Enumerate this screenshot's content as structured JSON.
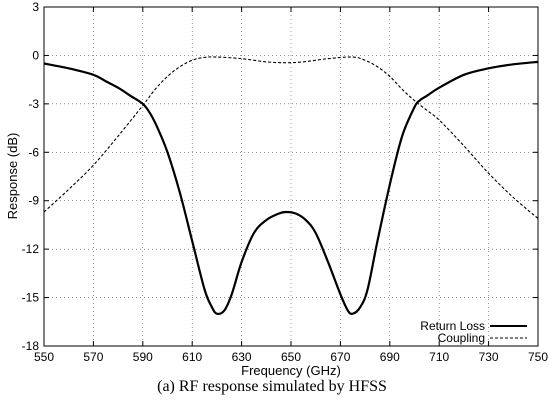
{
  "chart_data": {
    "type": "line",
    "xlabel": "Frequency (GHz)",
    "ylabel": "Response (dB)",
    "xlim": [
      550,
      750
    ],
    "ylim": [
      -18,
      3
    ],
    "xticks": [
      550,
      570,
      590,
      610,
      630,
      650,
      670,
      690,
      710,
      730,
      750
    ],
    "yticks": [
      3,
      0,
      -3,
      -6,
      -9,
      -12,
      -15,
      -18
    ],
    "grid": true,
    "legend_position": "bottom-right",
    "series": [
      {
        "name": "Return Loss",
        "style": "solid",
        "x": [
          550,
          560,
          570,
          575,
          580,
          585,
          590,
          593,
          596,
          600,
          605,
          610,
          615,
          618,
          620,
          623,
          626,
          630,
          635,
          640,
          645,
          648,
          652,
          656,
          660,
          665,
          670,
          673,
          675,
          678,
          681,
          685,
          690,
          695,
          700,
          702,
          705,
          710,
          720,
          730,
          740,
          750
        ],
        "y": [
          -0.5,
          -0.8,
          -1.2,
          -1.6,
          -2.0,
          -2.5,
          -3.0,
          -3.6,
          -4.5,
          -6.0,
          -8.5,
          -11.5,
          -14.5,
          -15.6,
          -16.0,
          -15.8,
          -14.8,
          -12.8,
          -11.0,
          -10.2,
          -9.8,
          -9.7,
          -9.8,
          -10.2,
          -11.0,
          -12.8,
          -14.8,
          -15.8,
          -16.0,
          -15.6,
          -14.5,
          -11.5,
          -8.0,
          -5.0,
          -3.2,
          -2.8,
          -2.5,
          -2.0,
          -1.2,
          -0.8,
          -0.55,
          -0.4
        ]
      },
      {
        "name": "Coupling",
        "style": "dashed",
        "x": [
          550,
          560,
          570,
          580,
          590,
          595,
          600,
          605,
          610,
          615,
          620,
          630,
          640,
          648,
          655,
          665,
          675,
          680,
          685,
          690,
          695,
          700,
          705,
          710,
          720,
          730,
          740,
          750
        ],
        "y": [
          -9.7,
          -8.3,
          -6.8,
          -5.0,
          -3.1,
          -2.1,
          -1.3,
          -0.7,
          -0.3,
          -0.12,
          -0.1,
          -0.2,
          -0.4,
          -0.45,
          -0.4,
          -0.2,
          -0.1,
          -0.3,
          -0.7,
          -1.3,
          -2.1,
          -2.8,
          -3.4,
          -4.0,
          -5.6,
          -7.3,
          -8.8,
          -10.1
        ]
      }
    ]
  },
  "caption": "(a)  RF response simulated by HFSS"
}
